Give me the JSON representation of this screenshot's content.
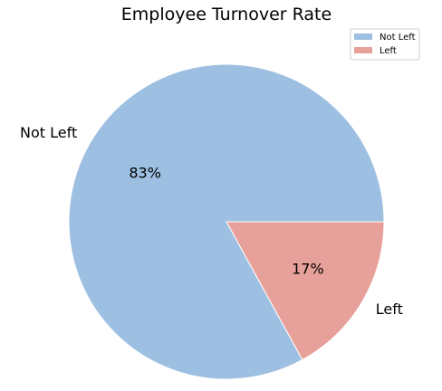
{
  "chart_data": {
    "type": "pie",
    "title": "Employee Turnover Rate",
    "categories": [
      "Not Left",
      "Left"
    ],
    "values": [
      83,
      17
    ],
    "percent_labels": [
      "83%",
      "17%"
    ],
    "colors": [
      "#9dbfe1",
      "#e8a09a"
    ],
    "start_angle_deg": 0,
    "direction": "counterclockwise",
    "legend": {
      "position": "top-right",
      "entries": [
        "Not Left",
        "Left"
      ]
    }
  }
}
